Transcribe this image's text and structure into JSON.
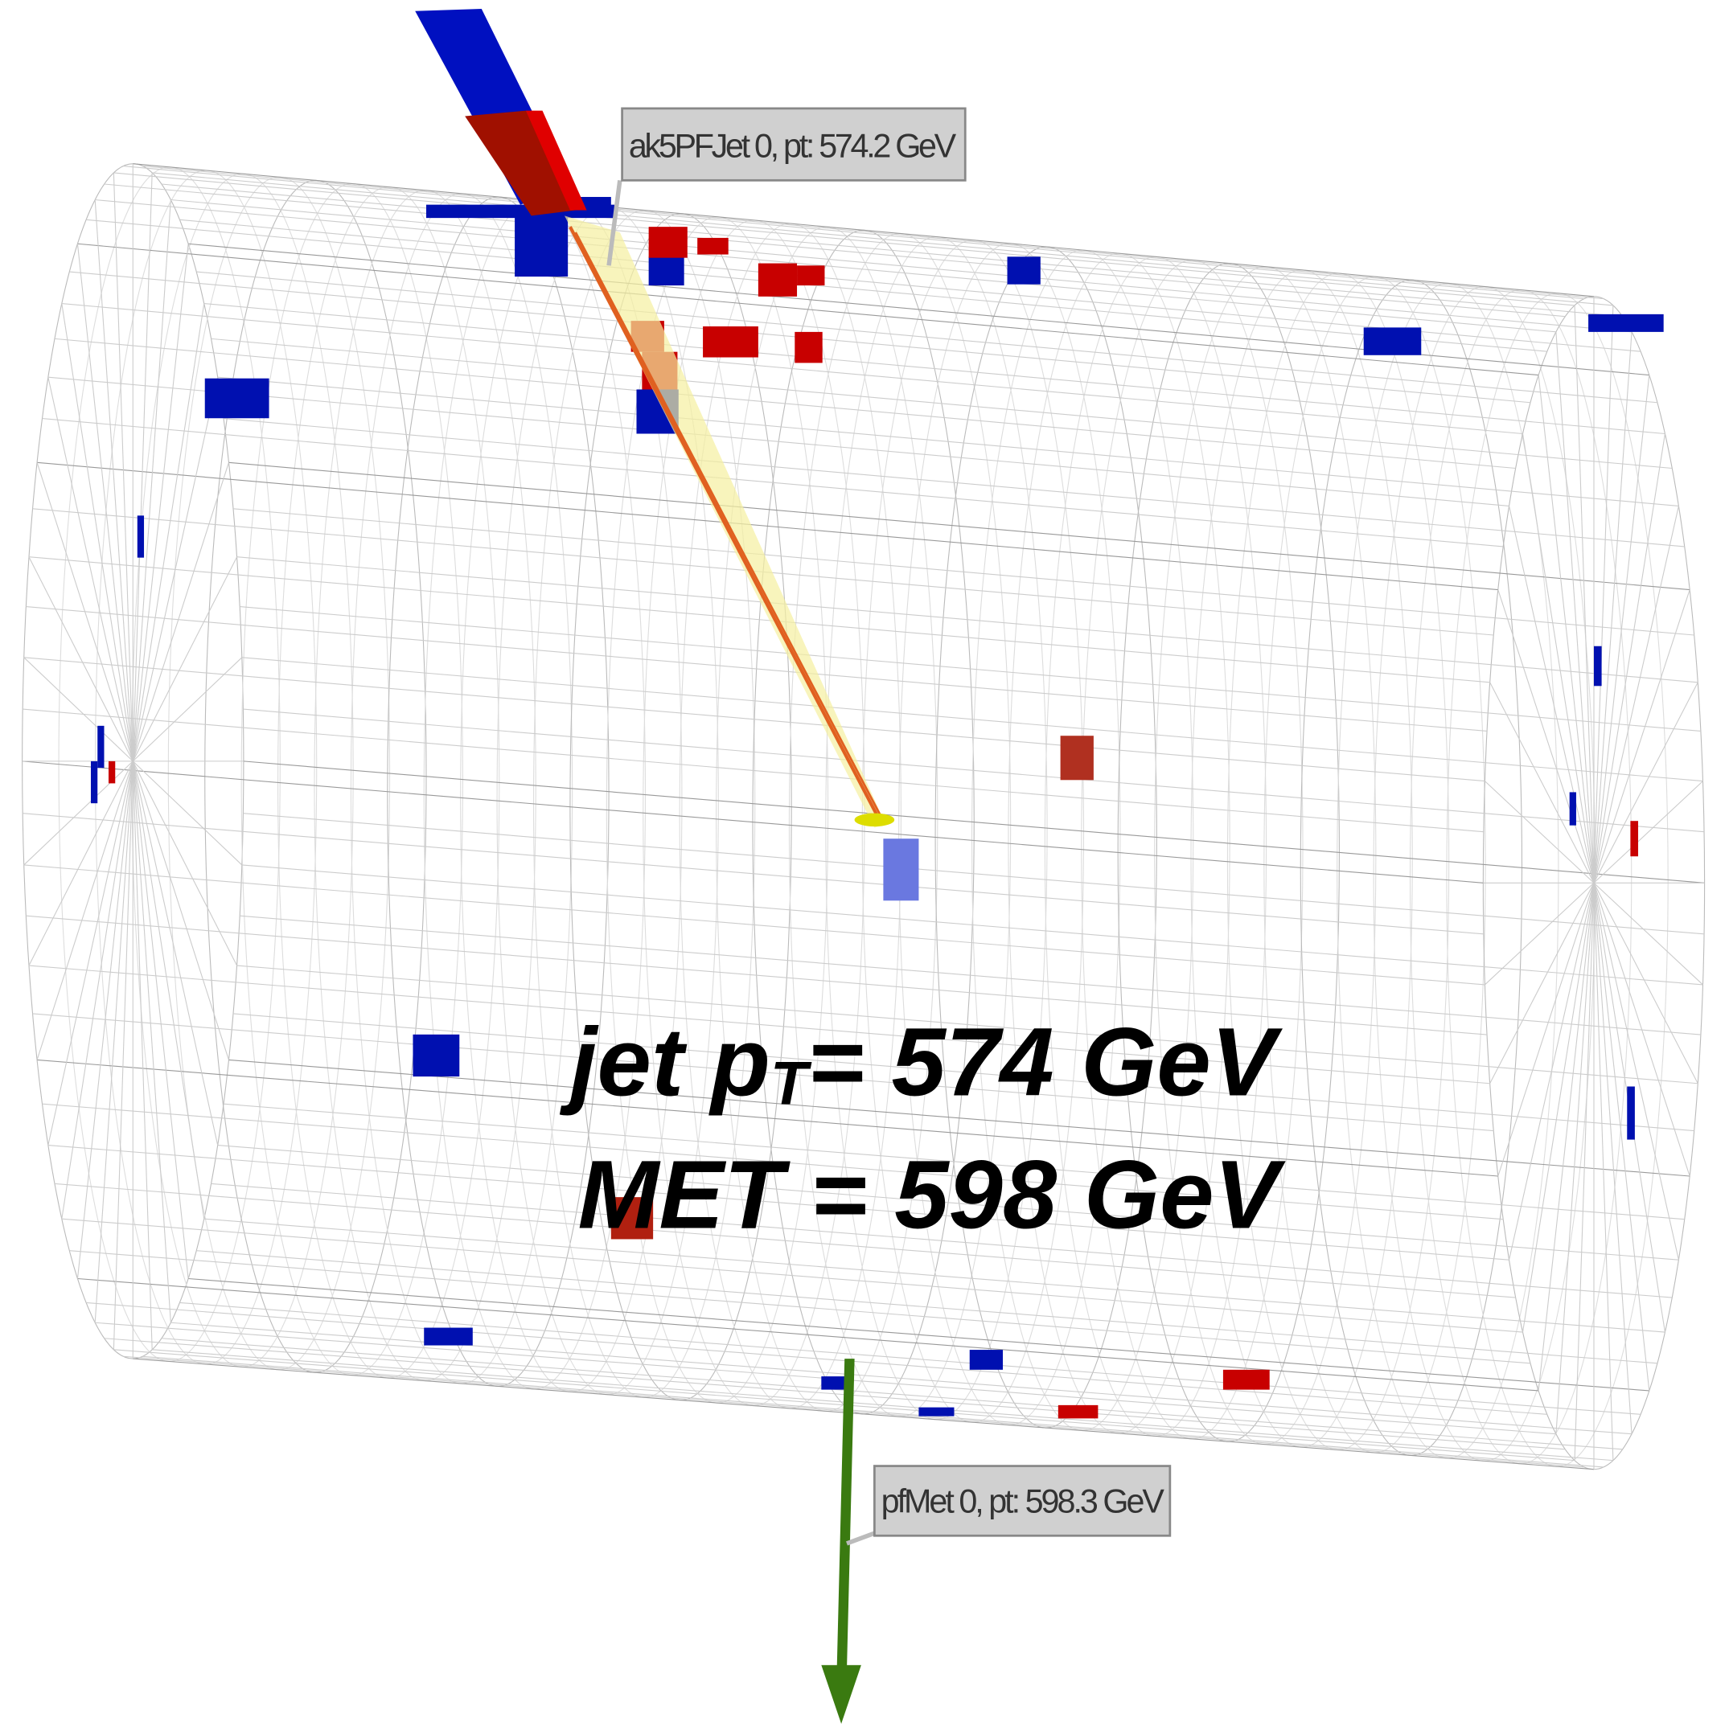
{
  "jet_label": "ak5PFJet 0, pt: 574.2 GeV",
  "met_label": "pfMet 0, pt: 598.3 GeV",
  "annotation": {
    "jet_prefix": "jet p",
    "jet_subscript": "T",
    "jet_suffix": "= 574 GeV",
    "met": "MET = 598 GeV"
  }
}
